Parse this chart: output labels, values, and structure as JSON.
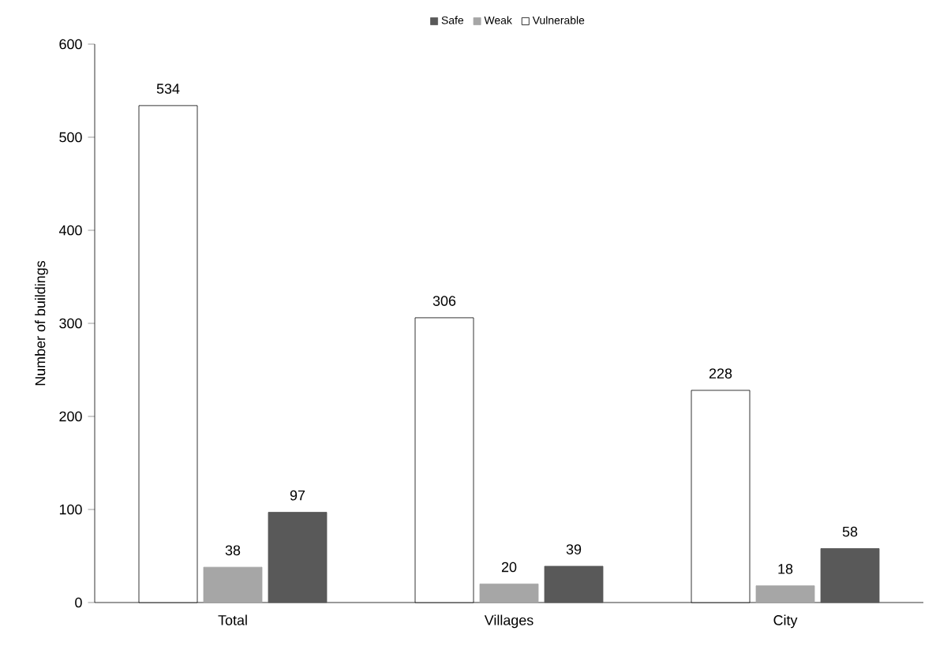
{
  "chart_data": {
    "type": "bar",
    "ylabel": "Number of buildings",
    "categories": [
      "Total",
      "Villages",
      "City"
    ],
    "series": [
      {
        "name": "Safe",
        "color": "#595959",
        "values": [
          97,
          39,
          58
        ]
      },
      {
        "name": "Weak",
        "color": "#a6a6a6",
        "values": [
          38,
          20,
          18
        ]
      },
      {
        "name": "Vulnerable",
        "color": "#ffffff",
        "values": [
          534,
          306,
          228
        ]
      }
    ],
    "ylim": [
      0,
      600
    ],
    "yticks": [
      0,
      100,
      200,
      300,
      400,
      500,
      600
    ],
    "data_labels": true,
    "grid": false,
    "legend": "top"
  }
}
